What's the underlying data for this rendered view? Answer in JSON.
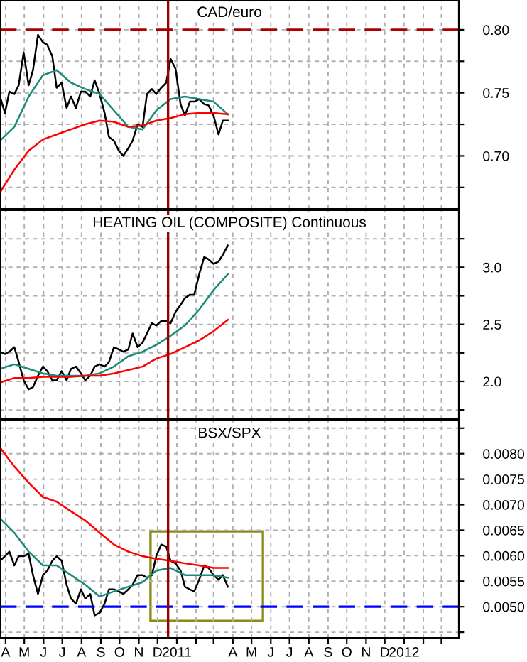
{
  "chart_data": [
    {
      "type": "line",
      "title": "CAD/euro",
      "grid": true,
      "tick_labels": "y",
      "line_style": "solid",
      "marker": "none",
      "xlim": [
        "2010-04-06",
        "2012-04-12"
      ],
      "xticks": [
        {
          "value": "2010-04-15",
          "label": null
        },
        {
          "value": "2010-05-15",
          "label": null
        },
        {
          "value": "2010-06-15",
          "label": null
        },
        {
          "value": "2010-07-15",
          "label": null
        },
        {
          "value": "2010-08-15",
          "label": null
        },
        {
          "value": "2010-09-15",
          "label": null
        },
        {
          "value": "2010-10-15",
          "label": null
        },
        {
          "value": "2010-11-15",
          "label": null
        },
        {
          "value": "2010-12-15",
          "label": null
        },
        {
          "value": "2011-01-15",
          "label": null
        },
        {
          "value": "2011-02-15",
          "label": null
        },
        {
          "value": "2011-03-15",
          "label": null
        },
        {
          "value": "2011-04-15",
          "label": null
        },
        {
          "value": "2011-05-15",
          "label": null
        },
        {
          "value": "2011-06-15",
          "label": null
        },
        {
          "value": "2011-07-15",
          "label": null
        },
        {
          "value": "2011-08-15",
          "label": null
        },
        {
          "value": "2011-09-15",
          "label": null
        },
        {
          "value": "2011-10-15",
          "label": null
        },
        {
          "value": "2011-11-15",
          "label": null
        },
        {
          "value": "2011-12-15",
          "label": null
        },
        {
          "value": "2012-01-15",
          "label": null
        },
        {
          "value": "2012-02-15",
          "label": null
        },
        {
          "value": "2012-03-15",
          "label": null
        }
      ],
      "ylim": [
        0.658,
        0.8236
      ],
      "yticks": [
        {
          "value": 0.675,
          "label": null
        },
        {
          "value": 0.7,
          "label": "0.70"
        },
        {
          "value": 0.725,
          "label": null
        },
        {
          "value": 0.75,
          "label": "0.75"
        },
        {
          "value": 0.775,
          "label": null
        },
        {
          "value": 0.8,
          "label": "0.80"
        }
      ],
      "ref_lines": [
        {
          "axis": "y",
          "value": 0.8,
          "color": "#aa0000",
          "line_style": "dashed"
        },
        {
          "axis": "x",
          "value": "2011-01-01",
          "color": "#990000",
          "line_style": "solid"
        }
      ],
      "x": [
        "2010-04-06",
        "2010-04-14",
        "2010-04-21",
        "2010-04-29",
        "2010-05-06",
        "2010-05-14",
        "2010-05-22",
        "2010-05-29",
        "2010-06-06",
        "2010-06-14",
        "2010-06-21",
        "2010-06-29",
        "2010-07-06",
        "2010-07-14",
        "2010-07-22",
        "2010-07-29",
        "2010-08-06",
        "2010-08-14",
        "2010-08-21",
        "2010-08-29",
        "2010-09-05",
        "2010-09-13",
        "2010-09-21",
        "2010-09-28",
        "2010-10-06",
        "2010-10-14",
        "2010-10-21",
        "2010-10-29",
        "2010-11-05",
        "2010-11-13",
        "2010-11-21",
        "2010-11-28",
        "2010-12-06",
        "2010-12-13",
        "2010-12-21",
        "2010-12-29",
        "2011-01-05",
        "2011-01-13",
        "2011-01-21",
        "2011-01-28",
        "2011-02-05",
        "2011-02-12",
        "2011-02-20",
        "2011-02-28",
        "2011-03-07",
        "2011-03-15",
        "2011-03-23",
        "2011-03-30",
        "2011-04-07"
      ],
      "series": [
        {
          "color": "#000000",
          "values": [
            0.747,
            0.734,
            0.751,
            0.749,
            0.756,
            0.782,
            0.756,
            0.768,
            0.796,
            0.79,
            0.788,
            0.779,
            0.754,
            0.758,
            0.738,
            0.747,
            0.738,
            0.751,
            0.751,
            0.747,
            0.76,
            0.749,
            0.734,
            0.715,
            0.712,
            0.704,
            0.7,
            0.706,
            0.712,
            0.725,
            0.723,
            0.749,
            0.753,
            0.749,
            0.754,
            0.758,
            0.777,
            0.769,
            0.741,
            0.732,
            0.743,
            0.743,
            0.745,
            0.741,
            0.74,
            0.732,
            0.717,
            0.728,
            0.728
          ]
        },
        {
          "color": "#1a8a7a",
          "x": [
            "2010-04-06",
            "2010-04-29",
            "2010-05-22",
            "2010-06-14",
            "2010-07-06",
            "2010-07-29",
            "2010-08-21",
            "2010-09-13",
            "2010-10-06",
            "2010-10-29",
            "2010-11-21",
            "2010-12-13",
            "2011-01-05",
            "2011-01-28",
            "2011-02-20",
            "2011-03-15",
            "2011-04-07"
          ],
          "values": [
            0.712,
            0.723,
            0.747,
            0.764,
            0.768,
            0.758,
            0.753,
            0.749,
            0.736,
            0.723,
            0.721,
            0.736,
            0.745,
            0.747,
            0.745,
            0.743,
            0.733
          ]
        },
        {
          "color": "#ff0000",
          "x": [
            "2010-04-06",
            "2010-04-29",
            "2010-05-22",
            "2010-06-14",
            "2010-07-06",
            "2010-07-29",
            "2010-08-21",
            "2010-09-13",
            "2010-10-06",
            "2010-10-29",
            "2010-11-21",
            "2010-12-13",
            "2011-01-05",
            "2011-01-28",
            "2011-02-20",
            "2011-03-15",
            "2011-04-07"
          ],
          "values": [
            0.671,
            0.689,
            0.704,
            0.713,
            0.717,
            0.721,
            0.725,
            0.728,
            0.727,
            0.723,
            0.724,
            0.728,
            0.73,
            0.733,
            0.734,
            0.734,
            0.733
          ]
        }
      ]
    },
    {
      "type": "line",
      "title": "HEATING OIL (COMPOSITE) Continuous",
      "grid": true,
      "tick_labels": "y",
      "line_style": "solid",
      "marker": "none",
      "xlim": [
        "2010-04-06",
        "2012-04-12"
      ],
      "xticks": [
        {
          "value": "2010-04-15",
          "label": null
        },
        {
          "value": "2010-05-15",
          "label": null
        },
        {
          "value": "2010-06-15",
          "label": null
        },
        {
          "value": "2010-07-15",
          "label": null
        },
        {
          "value": "2010-08-15",
          "label": null
        },
        {
          "value": "2010-09-15",
          "label": null
        },
        {
          "value": "2010-10-15",
          "label": null
        },
        {
          "value": "2010-11-15",
          "label": null
        },
        {
          "value": "2010-12-15",
          "label": null
        },
        {
          "value": "2011-01-15",
          "label": null
        },
        {
          "value": "2011-02-15",
          "label": null
        },
        {
          "value": "2011-03-15",
          "label": null
        },
        {
          "value": "2011-04-15",
          "label": null
        },
        {
          "value": "2011-05-15",
          "label": null
        },
        {
          "value": "2011-06-15",
          "label": null
        },
        {
          "value": "2011-07-15",
          "label": null
        },
        {
          "value": "2011-08-15",
          "label": null
        },
        {
          "value": "2011-09-15",
          "label": null
        },
        {
          "value": "2011-10-15",
          "label": null
        },
        {
          "value": "2011-11-15",
          "label": null
        },
        {
          "value": "2011-12-15",
          "label": null
        },
        {
          "value": "2012-01-15",
          "label": null
        },
        {
          "value": "2012-02-15",
          "label": null
        },
        {
          "value": "2012-03-15",
          "label": null
        }
      ],
      "ylim": [
        1.67,
        3.5
      ],
      "yticks": [
        {
          "value": 1.75,
          "label": null
        },
        {
          "value": 2.0,
          "label": "2.0"
        },
        {
          "value": 2.25,
          "label": null
        },
        {
          "value": 2.5,
          "label": "2.5"
        },
        {
          "value": 2.75,
          "label": null
        },
        {
          "value": 3.0,
          "label": "3.0"
        },
        {
          "value": 3.25,
          "label": null
        }
      ],
      "ref_lines": [
        {
          "axis": "x",
          "value": "2011-01-01",
          "color": "#990000",
          "line_style": "solid"
        }
      ],
      "x": [
        "2010-04-06",
        "2010-04-14",
        "2010-04-21",
        "2010-04-29",
        "2010-05-06",
        "2010-05-14",
        "2010-05-22",
        "2010-05-29",
        "2010-06-06",
        "2010-06-14",
        "2010-06-21",
        "2010-06-29",
        "2010-07-06",
        "2010-07-14",
        "2010-07-22",
        "2010-07-29",
        "2010-08-06",
        "2010-08-14",
        "2010-08-21",
        "2010-08-29",
        "2010-09-05",
        "2010-09-13",
        "2010-09-21",
        "2010-09-28",
        "2010-10-06",
        "2010-10-14",
        "2010-10-21",
        "2010-10-29",
        "2010-11-05",
        "2010-11-13",
        "2010-11-21",
        "2010-11-28",
        "2010-12-06",
        "2010-12-13",
        "2010-12-21",
        "2010-12-29",
        "2011-01-05",
        "2011-01-13",
        "2011-01-21",
        "2011-01-28",
        "2011-02-05",
        "2011-02-12",
        "2011-02-20",
        "2011-02-28",
        "2011-03-07",
        "2011-03-15",
        "2011-03-23",
        "2011-03-30",
        "2011-04-07"
      ],
      "series": [
        {
          "color": "#000000",
          "values": [
            2.26,
            2.24,
            2.26,
            2.3,
            2.17,
            2.01,
            1.93,
            1.95,
            2.05,
            2.13,
            2.09,
            2.01,
            2.01,
            2.09,
            2.01,
            2.11,
            2.13,
            2.07,
            2.01,
            2.05,
            2.13,
            2.15,
            2.13,
            2.17,
            2.3,
            2.28,
            2.26,
            2.28,
            2.42,
            2.3,
            2.34,
            2.42,
            2.51,
            2.49,
            2.53,
            2.53,
            2.51,
            2.61,
            2.67,
            2.73,
            2.76,
            2.76,
            2.94,
            3.09,
            3.07,
            3.03,
            3.05,
            3.11,
            3.19
          ]
        },
        {
          "color": "#1a8a7a",
          "x": [
            "2010-04-06",
            "2010-04-29",
            "2010-05-22",
            "2010-06-14",
            "2010-07-06",
            "2010-07-29",
            "2010-08-21",
            "2010-09-13",
            "2010-10-06",
            "2010-10-29",
            "2010-11-21",
            "2010-12-13",
            "2011-01-05",
            "2011-01-28",
            "2011-02-20",
            "2011-03-15",
            "2011-04-07"
          ],
          "values": [
            2.11,
            2.15,
            2.11,
            2.07,
            2.05,
            2.05,
            2.05,
            2.07,
            2.13,
            2.22,
            2.26,
            2.32,
            2.4,
            2.49,
            2.63,
            2.8,
            2.94
          ]
        },
        {
          "color": "#ff0000",
          "x": [
            "2010-04-06",
            "2010-04-29",
            "2010-05-22",
            "2010-06-14",
            "2010-07-06",
            "2010-07-29",
            "2010-08-21",
            "2010-09-13",
            "2010-10-06",
            "2010-10-29",
            "2010-11-21",
            "2010-12-13",
            "2011-01-05",
            "2011-01-28",
            "2011-02-20",
            "2011-03-15",
            "2011-04-07"
          ],
          "values": [
            1.99,
            2.03,
            2.03,
            2.04,
            2.04,
            2.04,
            2.05,
            2.05,
            2.07,
            2.1,
            2.13,
            2.2,
            2.24,
            2.3,
            2.36,
            2.44,
            2.54
          ]
        }
      ]
    },
    {
      "type": "line",
      "title": "BSX/SPX",
      "grid": true,
      "line_style": "solid",
      "marker": "none",
      "xlim": [
        "2010-04-06",
        "2012-04-12"
      ],
      "xticks": [
        {
          "value": "2010-04-15",
          "label": "A"
        },
        {
          "value": "2010-05-15",
          "label": "M"
        },
        {
          "value": "2010-06-15",
          "label": "J"
        },
        {
          "value": "2010-07-15",
          "label": "J"
        },
        {
          "value": "2010-08-15",
          "label": "A"
        },
        {
          "value": "2010-09-15",
          "label": "S"
        },
        {
          "value": "2010-10-15",
          "label": "O"
        },
        {
          "value": "2010-11-15",
          "label": "N"
        },
        {
          "value": "2010-12-15",
          "label": "D"
        },
        {
          "value": "2011-01-15",
          "label": "2011"
        },
        {
          "value": "2011-02-15",
          "label": null
        },
        {
          "value": "2011-03-15",
          "label": null
        },
        {
          "value": "2011-04-15",
          "label": "A"
        },
        {
          "value": "2011-05-15",
          "label": "M"
        },
        {
          "value": "2011-06-15",
          "label": "J"
        },
        {
          "value": "2011-07-15",
          "label": "J"
        },
        {
          "value": "2011-08-15",
          "label": "A"
        },
        {
          "value": "2011-09-15",
          "label": "S"
        },
        {
          "value": "2011-10-15",
          "label": "O"
        },
        {
          "value": "2011-11-15",
          "label": "N"
        },
        {
          "value": "2011-12-15",
          "label": "D"
        },
        {
          "value": "2012-01-15",
          "label": "2012"
        },
        {
          "value": "2012-02-15",
          "label": null
        },
        {
          "value": "2012-03-15",
          "label": null
        }
      ],
      "ylim": [
        0.00439,
        0.00865
      ],
      "yticks": [
        {
          "value": 0.0045,
          "label": null
        },
        {
          "value": 0.005,
          "label": "0.0050"
        },
        {
          "value": 0.0055,
          "label": "0.0055"
        },
        {
          "value": 0.006,
          "label": "0.0060"
        },
        {
          "value": 0.0065,
          "label": "0.0065"
        },
        {
          "value": 0.007,
          "label": "0.0070"
        },
        {
          "value": 0.0075,
          "label": "0.0075"
        },
        {
          "value": 0.008,
          "label": "0.0080"
        },
        {
          "value": 0.0085,
          "label": null
        }
      ],
      "ref_lines": [
        {
          "axis": "y",
          "value": 0.005,
          "color": "#0000ff",
          "line_style": "dashed"
        },
        {
          "axis": "x",
          "value": "2011-01-01",
          "color": "#990000",
          "line_style": "solid"
        }
      ],
      "x": [
        "2010-04-06",
        "2010-04-14",
        "2010-04-21",
        "2010-04-29",
        "2010-05-06",
        "2010-05-14",
        "2010-05-22",
        "2010-05-29",
        "2010-06-06",
        "2010-06-14",
        "2010-06-21",
        "2010-06-29",
        "2010-07-06",
        "2010-07-14",
        "2010-07-22",
        "2010-07-29",
        "2010-08-06",
        "2010-08-14",
        "2010-08-21",
        "2010-08-29",
        "2010-09-05",
        "2010-09-13",
        "2010-09-21",
        "2010-09-28",
        "2010-10-06",
        "2010-10-14",
        "2010-10-21",
        "2010-10-29",
        "2010-11-05",
        "2010-11-13",
        "2010-11-21",
        "2010-11-28",
        "2010-12-06",
        "2010-12-13",
        "2010-12-21",
        "2010-12-29",
        "2011-01-05",
        "2011-01-13",
        "2011-01-21",
        "2011-01-28",
        "2011-02-05",
        "2011-02-12",
        "2011-02-20",
        "2011-02-28",
        "2011-03-07",
        "2011-03-15",
        "2011-03-23",
        "2011-03-30",
        "2011-04-07"
      ],
      "series": [
        {
          "color": "#000000",
          "values": [
            0.0059,
            0.00599,
            0.00608,
            0.00581,
            0.00599,
            0.00599,
            0.00604,
            0.00562,
            0.00525,
            0.00562,
            0.00571,
            0.0059,
            0.00599,
            0.0059,
            0.00543,
            0.00516,
            0.00506,
            0.00534,
            0.00516,
            0.00525,
            0.00483,
            0.00488,
            0.00506,
            0.00534,
            0.00534,
            0.0053,
            0.00525,
            0.00534,
            0.00543,
            0.00562,
            0.00562,
            0.00557,
            0.00562,
            0.00599,
            0.00622,
            0.00618,
            0.0059,
            0.00585,
            0.00571,
            0.00539,
            0.00534,
            0.0053,
            0.00553,
            0.00581,
            0.00576,
            0.00562,
            0.00553,
            0.00562,
            0.00539
          ]
        },
        {
          "color": "#1a8a7a",
          "x": [
            "2010-04-06",
            "2010-04-29",
            "2010-05-22",
            "2010-06-14",
            "2010-07-06",
            "2010-07-29",
            "2010-08-21",
            "2010-09-13",
            "2010-10-06",
            "2010-10-29",
            "2010-11-21",
            "2010-12-13",
            "2011-01-05",
            "2011-01-28",
            "2011-02-20",
            "2011-03-15",
            "2011-04-07"
          ],
          "values": [
            0.00673,
            0.00645,
            0.00608,
            0.00581,
            0.00581,
            0.00562,
            0.00543,
            0.0052,
            0.0053,
            0.00539,
            0.00548,
            0.00571,
            0.00576,
            0.00562,
            0.00562,
            0.00562,
            0.00557
          ]
        },
        {
          "color": "#ff0000",
          "x": [
            "2010-04-06",
            "2010-04-29",
            "2010-05-22",
            "2010-06-14",
            "2010-07-06",
            "2010-07-29",
            "2010-08-21",
            "2010-09-13",
            "2010-10-06",
            "2010-10-29",
            "2010-11-21",
            "2010-12-13",
            "2011-01-05",
            "2011-01-28",
            "2011-02-20",
            "2011-03-15",
            "2011-04-07"
          ],
          "values": [
            0.00812,
            0.00775,
            0.00743,
            0.00715,
            0.00706,
            0.00687,
            0.00669,
            0.00645,
            0.00622,
            0.00608,
            0.00599,
            0.00594,
            0.0059,
            0.00585,
            0.00581,
            0.00576,
            0.00576
          ]
        }
      ]
    }
  ]
}
